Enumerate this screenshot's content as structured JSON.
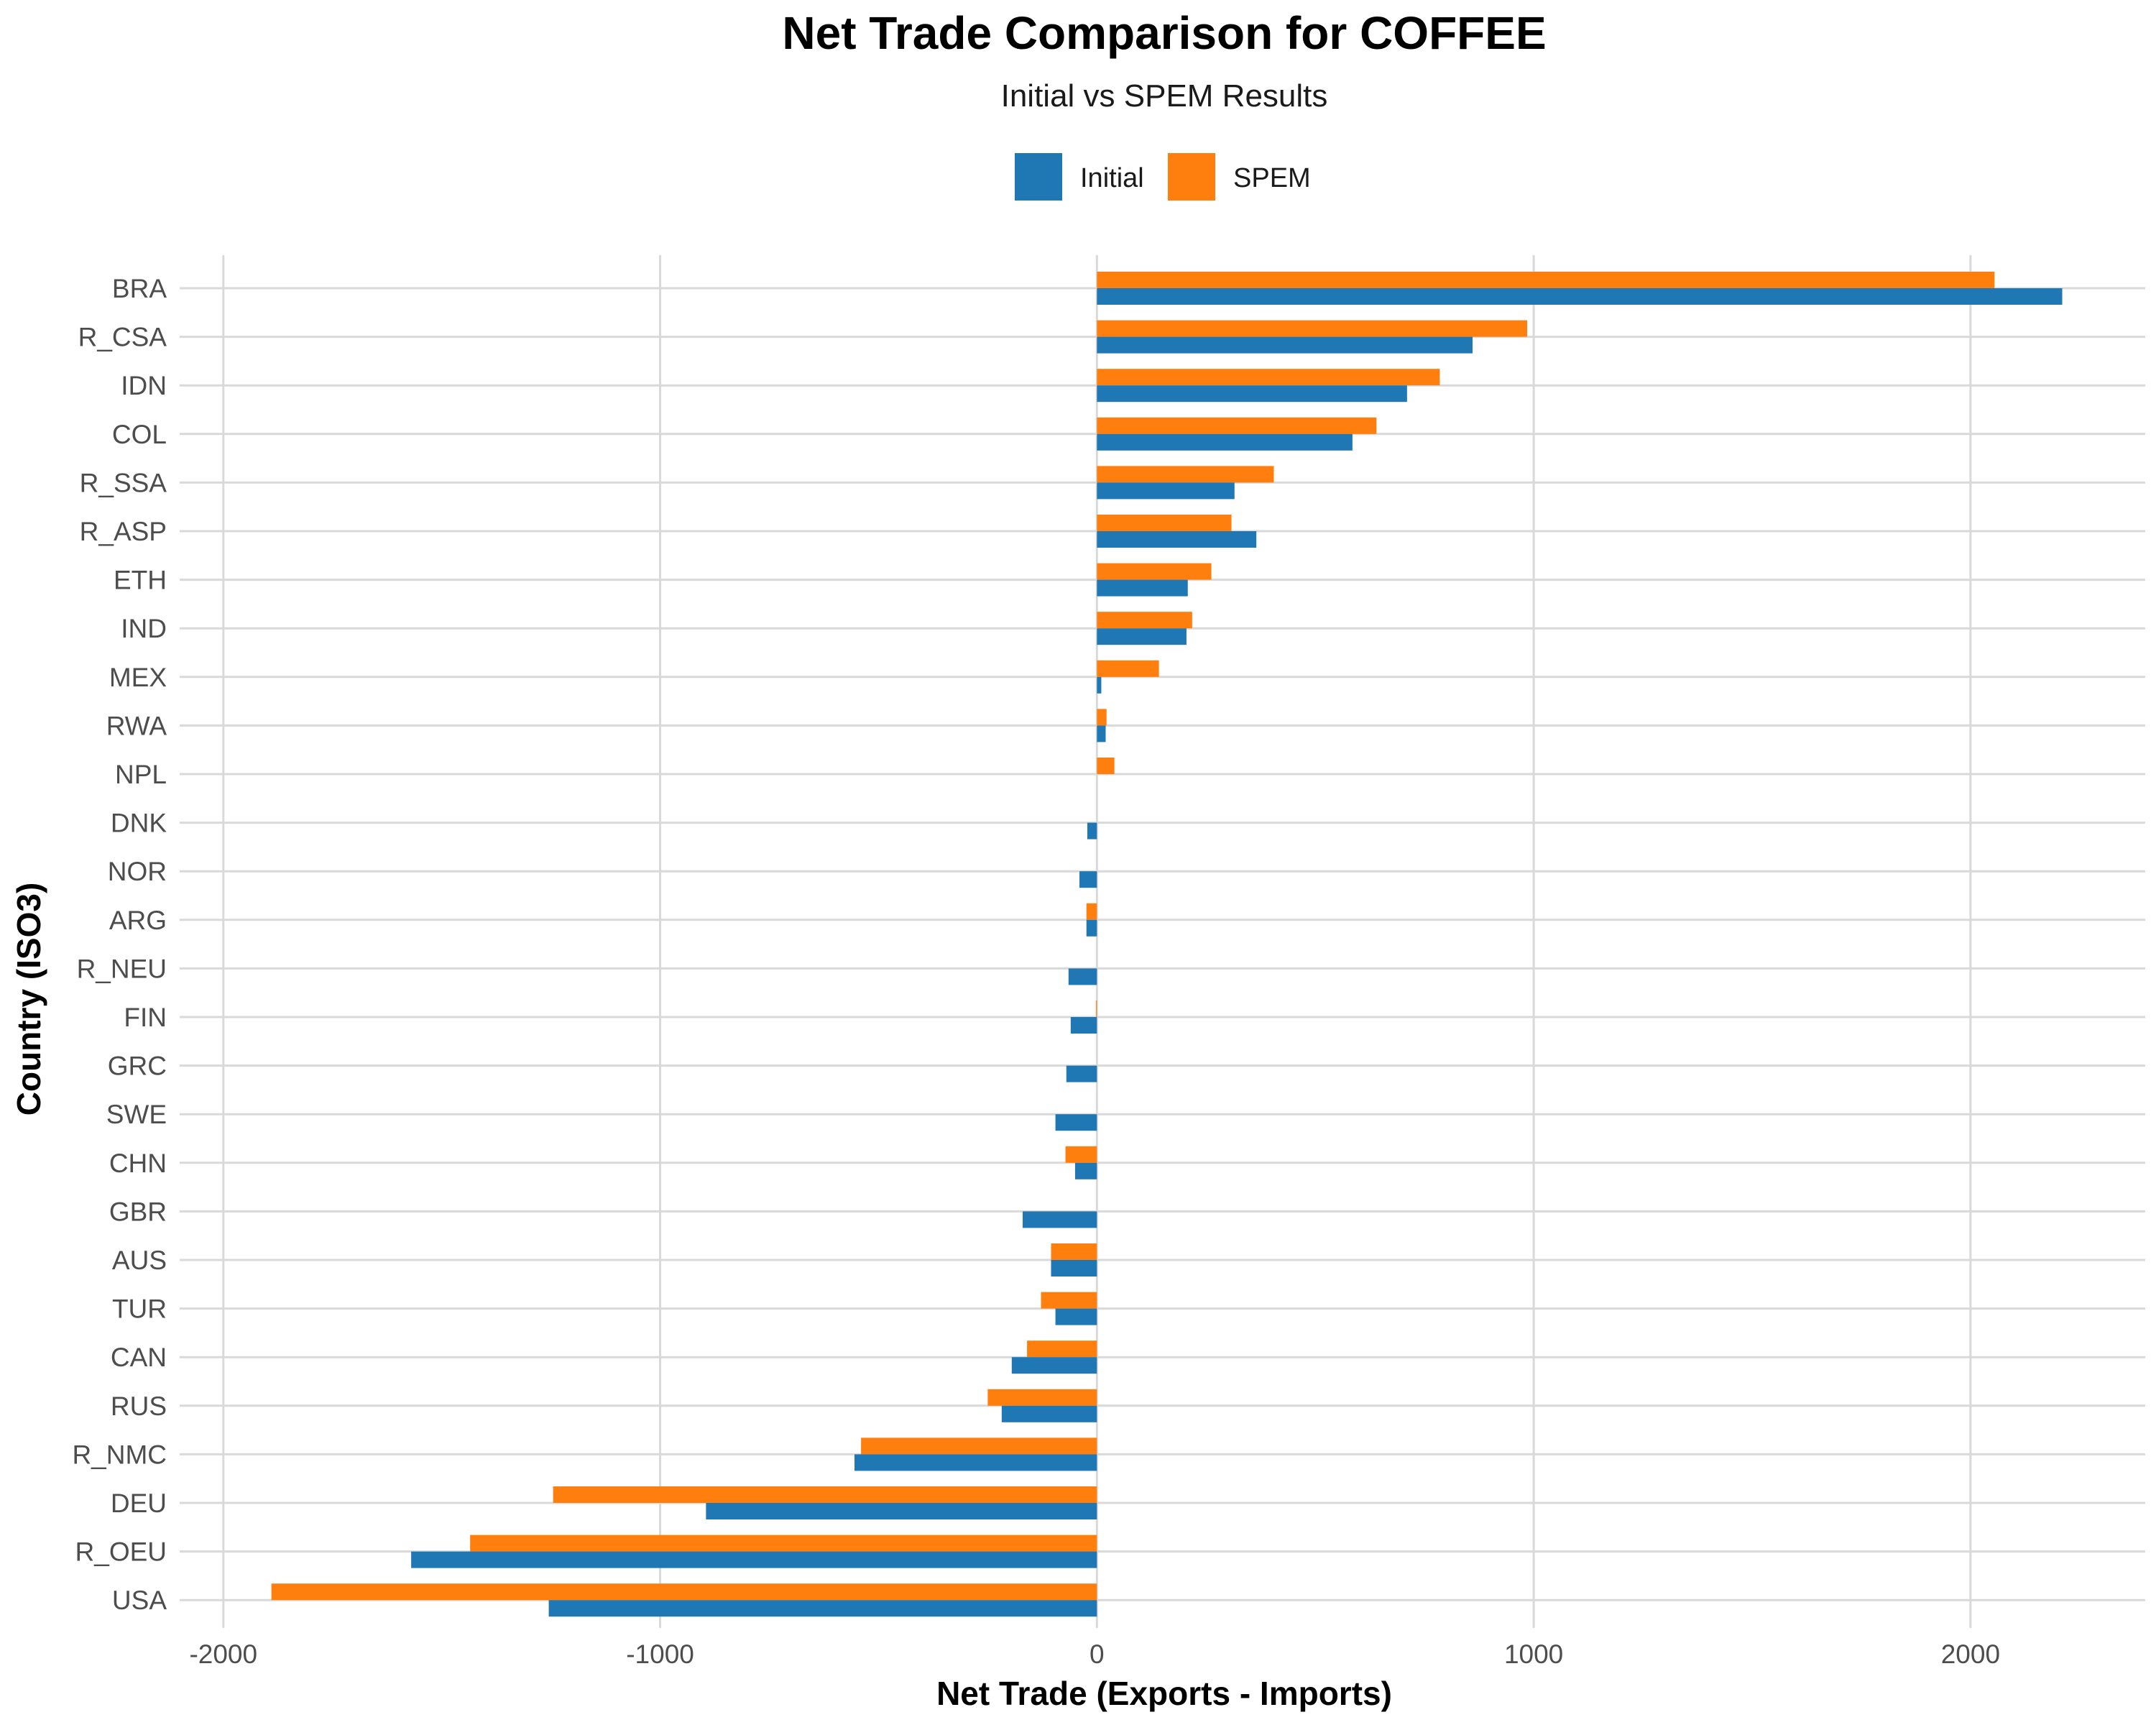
{
  "chart_data": {
    "type": "bar",
    "orientation": "horizontal",
    "title": "Net Trade Comparison for COFFEE",
    "subtitle": "Initial vs SPEM Results",
    "xlabel": "Net Trade (Exports - Imports)",
    "ylabel": "Country (ISO3)",
    "xlim": [
      -2100,
      2400
    ],
    "x_ticks": [
      -2000,
      -1000,
      0,
      1000,
      2000
    ],
    "x_tick_labels": [
      "-2000",
      "-1000",
      "0",
      "1000",
      "2000"
    ],
    "legend_position": "top",
    "grid": true,
    "categories": [
      "BRA",
      "R_CSA",
      "IDN",
      "COL",
      "R_SSA",
      "R_ASP",
      "ETH",
      "IND",
      "MEX",
      "RWA",
      "NPL",
      "DNK",
      "NOR",
      "ARG",
      "R_NEU",
      "FIN",
      "GRC",
      "SWE",
      "CHN",
      "GBR",
      "AUS",
      "TUR",
      "CAN",
      "RUS",
      "R_NMC",
      "DEU",
      "R_OEU",
      "USA"
    ],
    "series": [
      {
        "name": "Initial",
        "color": "#1f77b4",
        "values": [
          2210,
          860,
          710,
          585,
          315,
          365,
          208,
          205,
          10,
          20,
          0,
          -22,
          -40,
          -24,
          -65,
          -60,
          -70,
          -95,
          -50,
          -170,
          -105,
          -95,
          -195,
          -218,
          -555,
          -895,
          -1570,
          -1255
        ]
      },
      {
        "name": "SPEM",
        "color": "#ff7f0e",
        "values": [
          2055,
          985,
          785,
          640,
          405,
          308,
          262,
          218,
          142,
          22,
          40,
          0,
          0,
          -24,
          0,
          -2,
          0,
          0,
          -72,
          0,
          -105,
          -128,
          -160,
          -250,
          -540,
          -1245,
          -1435,
          -1890
        ]
      }
    ]
  }
}
